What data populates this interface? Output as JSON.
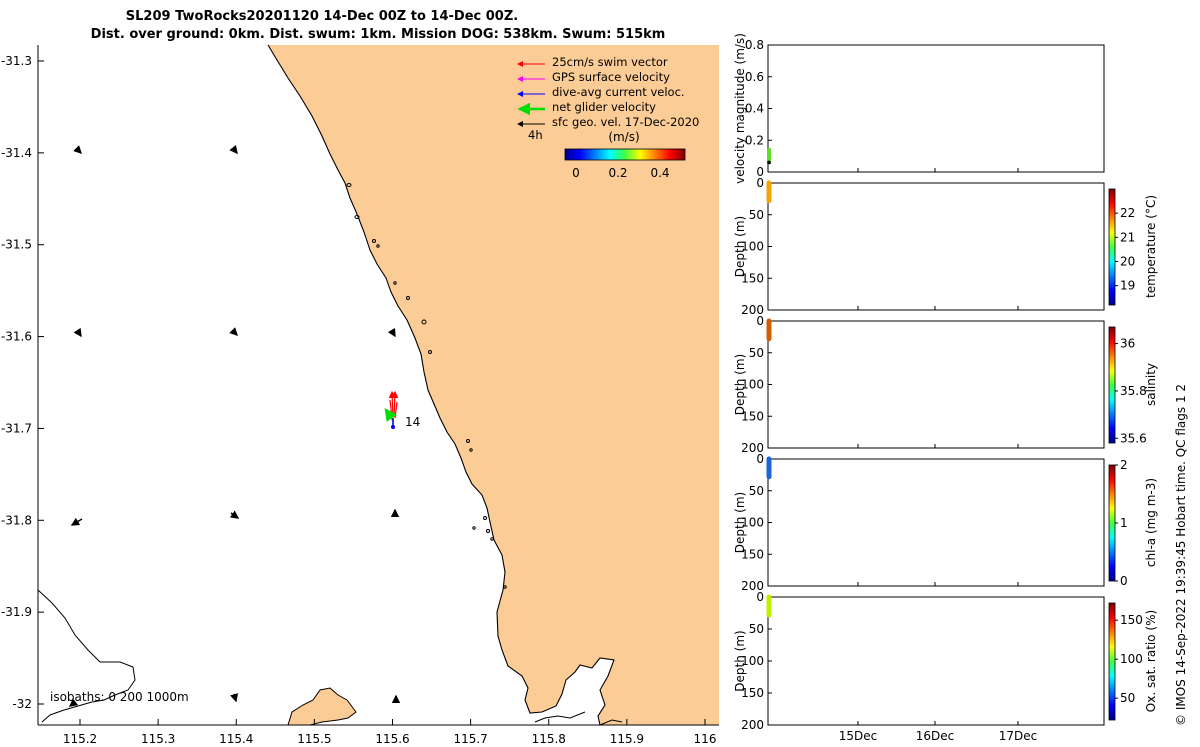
{
  "title": {
    "line1": "SL209 TwoRocks20201120 14-Dec 00Z to 14-Dec 00Z.",
    "line2": "Dist. over ground: 0km. Dist. swum: 1km. Mission DOG: 538km. Swum: 515km"
  },
  "colors": {
    "land": "#fccc96",
    "swim": "#ff0000",
    "gps": "#ff00ff",
    "current": "#0000ff",
    "net": "#00e000",
    "geo": "#000000"
  },
  "map": {
    "x_ticks": [
      "115.2",
      "115.3",
      "115.4",
      "115.5",
      "115.6",
      "115.7",
      "115.8",
      "115.9",
      "116"
    ],
    "y_ticks": [
      "-31.3",
      "-31.4",
      "-31.5",
      "-31.6",
      "-31.7",
      "-31.8",
      "-31.9",
      "-32"
    ],
    "xlim": [
      115.15,
      116.0
    ],
    "ylim": [
      -32.02,
      -31.28
    ],
    "legend": {
      "swim": "25cm/s swim vector",
      "gps": "GPS surface velocity",
      "current": "dive-avg current veloc.",
      "net": "net glider velocity",
      "geo": "sfc geo. vel. 17-Dec-2020",
      "time": "4h"
    },
    "colorbar": {
      "label": "(m/s)",
      "ticks": [
        "0",
        "0.2",
        "0.4"
      ]
    },
    "isobaths": "isobaths: 0   200  1000m",
    "point_label": "14",
    "glider_position": {
      "lon": 115.598,
      "lat": -31.698
    }
  },
  "chart_data": [
    {
      "type": "scatter",
      "ylabel": "velocity magnitude (m/s)",
      "y_ticks": [
        "0",
        "0.2",
        "0.4",
        "0.6",
        "0.8"
      ],
      "ylim": [
        0,
        0.8
      ],
      "points": [
        {
          "x": "14-Dec",
          "y": 0.12,
          "color": "#5ce02a"
        },
        {
          "x": "14-Dec",
          "y": 0.06,
          "color": "#000000"
        }
      ]
    },
    {
      "type": "scatter",
      "ylabel": "Depth (m)",
      "y_ticks": [
        "0",
        "50",
        "100",
        "150",
        "200"
      ],
      "ylim": [
        200,
        0
      ],
      "cbar_label": "temperature (°C)",
      "cbar_ticks": [
        "19",
        "20",
        "21",
        "22"
      ],
      "cbar_range": [
        18.2,
        23.0
      ],
      "profile": {
        "from": 0,
        "to": 28,
        "color": "#f2a400"
      }
    },
    {
      "type": "scatter",
      "ylabel": "Depth (m)",
      "y_ticks": [
        "0",
        "50",
        "100",
        "150",
        "200"
      ],
      "ylim": [
        200,
        0
      ],
      "cbar_label": "salinity",
      "cbar_ticks": [
        "35.6",
        "35.8",
        "36"
      ],
      "cbar_range": [
        35.58,
        36.07
      ],
      "profile": {
        "from": 0,
        "to": 28,
        "color": "#d25e00"
      }
    },
    {
      "type": "scatter",
      "ylabel": "Depth (m)",
      "y_ticks": [
        "0",
        "50",
        "100",
        "150",
        "200"
      ],
      "ylim": [
        200,
        0
      ],
      "cbar_label": "chl-a (mg m-3)",
      "cbar_ticks": [
        "0",
        "1",
        "2"
      ],
      "cbar_range": [
        0,
        2
      ],
      "profile": {
        "from": 0,
        "to": 28,
        "color": "#1e64d8"
      }
    },
    {
      "type": "scatter",
      "ylabel": "Depth (m)",
      "y_ticks": [
        "0",
        "50",
        "100",
        "150",
        "200"
      ],
      "ylim": [
        200,
        0
      ],
      "cbar_label": "Ox. sat. ratio (%)",
      "cbar_ticks": [
        "50",
        "100",
        "150"
      ],
      "cbar_range": [
        22,
        172
      ],
      "profile": {
        "from": 0,
        "to": 28,
        "color": "#c0f000"
      }
    }
  ],
  "time_axis": [
    "15Dec",
    "16Dec",
    "17Dec"
  ],
  "footer": "© IMOS 14-Sep-2022 19:39:45 Hobart time. QC flags 1  2"
}
